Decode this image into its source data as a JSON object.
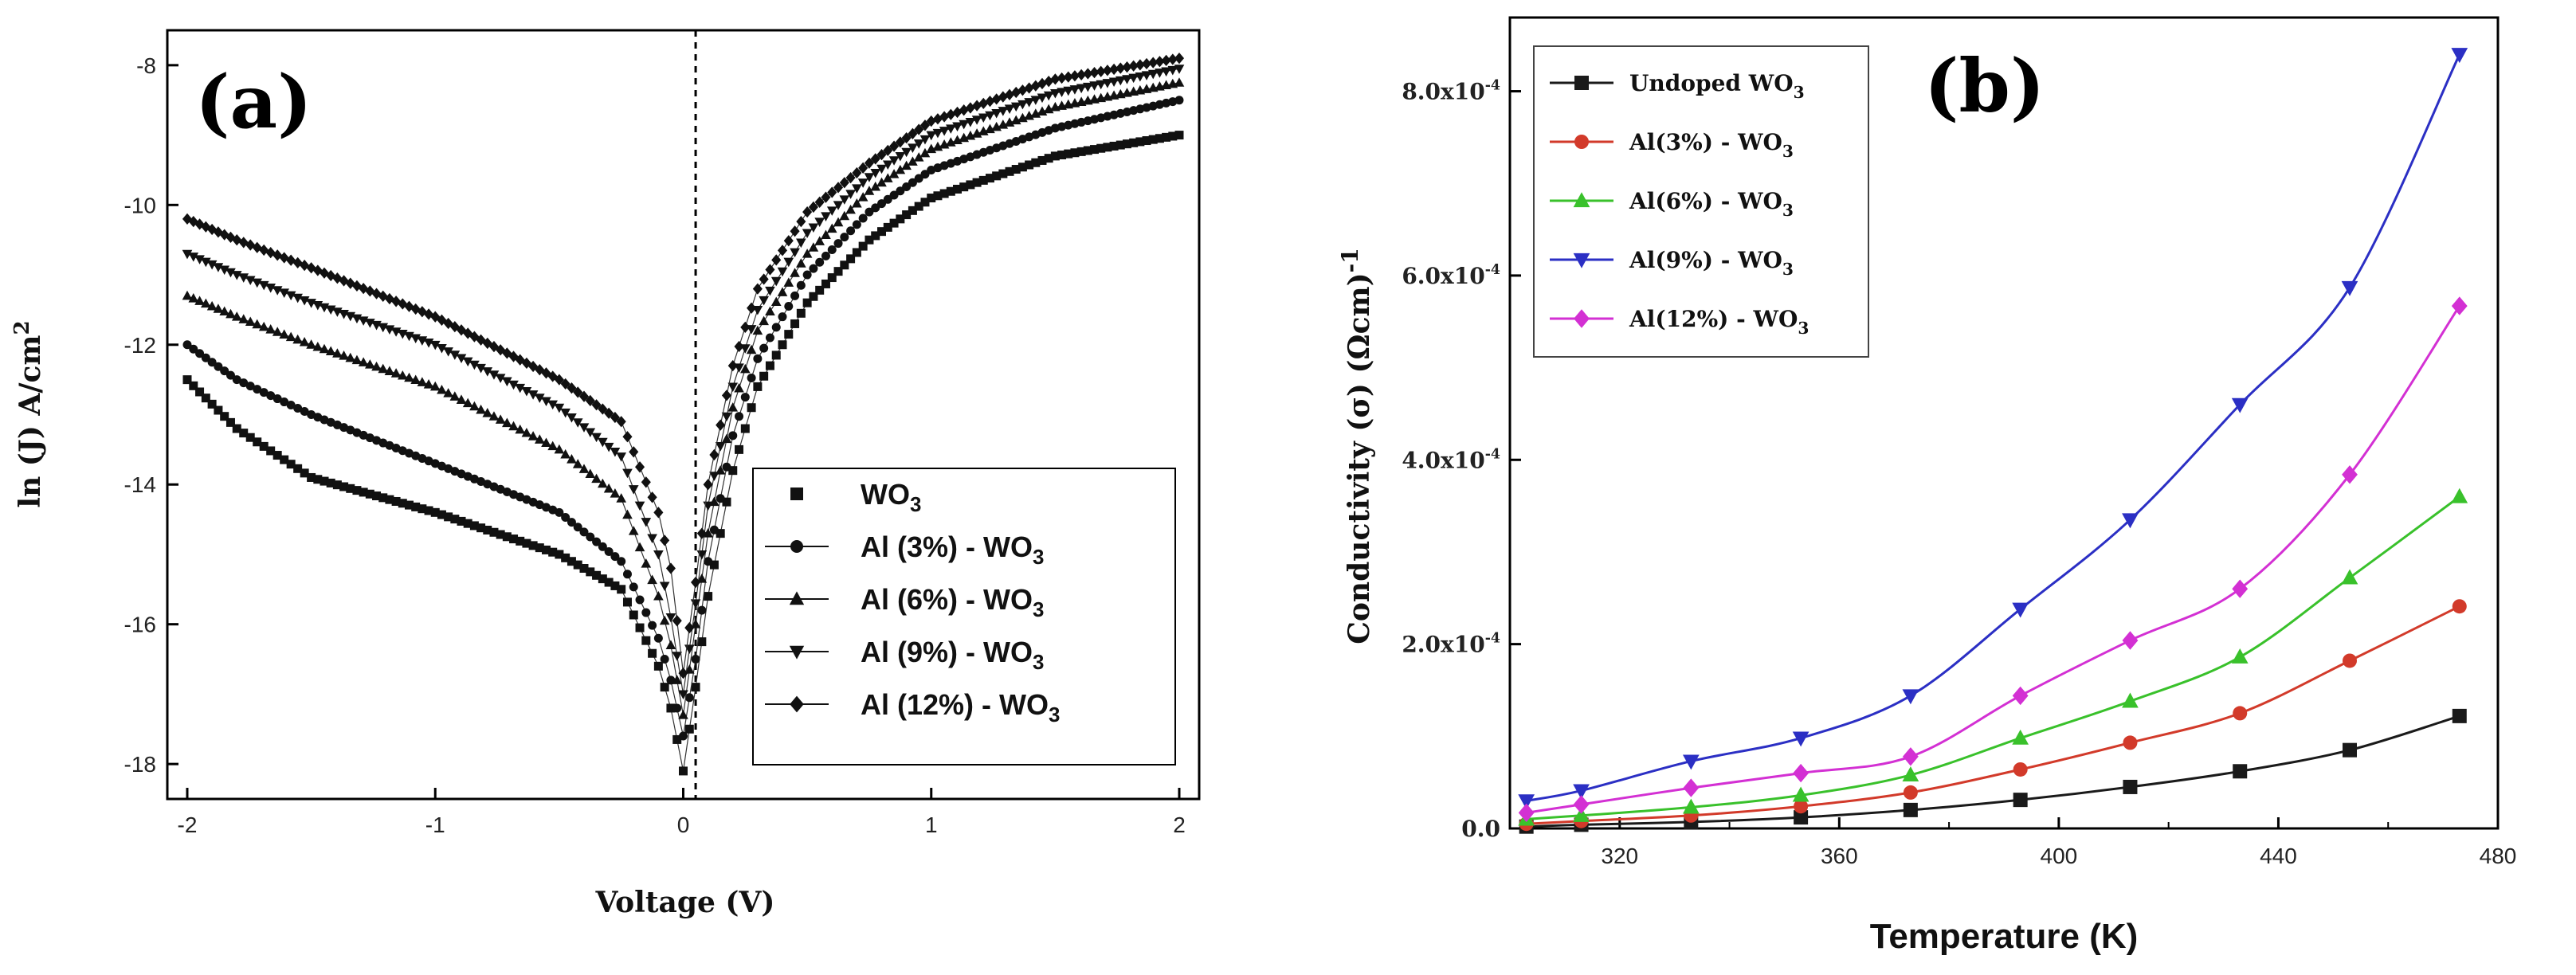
{
  "chart_data": [
    {
      "panel_label": "(a)",
      "type": "scatter",
      "xlabel": "Voltage (V)",
      "ylabel": "ln (J) A/cm",
      "ylabel_sup": "2",
      "xlim": [
        -2,
        2
      ],
      "ylim": [
        -18.5,
        -7.5
      ],
      "xticks": [
        "-2",
        "-1",
        "0",
        "1",
        "2"
      ],
      "yticks": [
        "-8",
        "-10",
        "-12",
        "-14",
        "-16",
        "-18"
      ],
      "vertical_reference_line": {
        "x": 0.05,
        "style": "dashed"
      },
      "legend": {
        "position": "lower-right"
      },
      "series": [
        {
          "name": "WO",
          "sub": "3",
          "marker": "square",
          "x": [
            -2,
            -1.8,
            -1.5,
            -1.0,
            -0.5,
            -0.25,
            -0.1,
            -0.05,
            0,
            0.05,
            0.1,
            0.2,
            0.3,
            0.5,
            0.75,
            1.0,
            1.5,
            2.0
          ],
          "y": [
            -12.5,
            -13.2,
            -13.9,
            -14.4,
            -15.0,
            -15.5,
            -16.6,
            -17.2,
            -18.1,
            -16.9,
            -15.6,
            -13.8,
            -12.6,
            -11.4,
            -10.5,
            -9.9,
            -9.3,
            -9.0
          ]
        },
        {
          "name": "Al (3%) - WO",
          "sub": "3",
          "marker": "circle",
          "x": [
            -2,
            -1.8,
            -1.5,
            -1.0,
            -0.5,
            -0.25,
            -0.1,
            -0.05,
            0,
            0.05,
            0.1,
            0.2,
            0.3,
            0.5,
            0.75,
            1.0,
            1.5,
            2.0
          ],
          "y": [
            -12.0,
            -12.5,
            -13.0,
            -13.7,
            -14.4,
            -15.1,
            -16.2,
            -16.8,
            -17.6,
            -16.5,
            -15.1,
            -13.3,
            -12.2,
            -11.0,
            -10.1,
            -9.5,
            -8.9,
            -8.5
          ]
        },
        {
          "name": "Al (6%) - WO",
          "sub": "3",
          "marker": "triangle-up",
          "x": [
            -2,
            -1.8,
            -1.5,
            -1.0,
            -0.5,
            -0.25,
            -0.1,
            -0.05,
            0,
            0.05,
            0.1,
            0.2,
            0.3,
            0.5,
            0.75,
            1.0,
            1.5,
            2.0
          ],
          "y": [
            -11.3,
            -11.6,
            -12.0,
            -12.6,
            -13.5,
            -14.2,
            -15.6,
            -16.3,
            -17.3,
            -16.0,
            -14.7,
            -12.9,
            -11.8,
            -10.7,
            -9.8,
            -9.2,
            -8.6,
            -8.25
          ]
        },
        {
          "name": "Al (9%) - WO",
          "sub": "3",
          "marker": "triangle-down",
          "x": [
            -2,
            -1.8,
            -1.5,
            -1.0,
            -0.5,
            -0.25,
            -0.1,
            -0.05,
            0,
            0.05,
            0.1,
            0.2,
            0.3,
            0.5,
            0.75,
            1.0,
            1.5,
            2.0
          ],
          "y": [
            -10.7,
            -11.0,
            -11.4,
            -12.0,
            -12.9,
            -13.6,
            -15.0,
            -15.9,
            -17.0,
            -15.7,
            -14.3,
            -12.6,
            -11.5,
            -10.4,
            -9.6,
            -9.0,
            -8.4,
            -8.05
          ]
        },
        {
          "name": "Al (12%) - WO",
          "sub": "3",
          "marker": "diamond",
          "x": [
            -2,
            -1.8,
            -1.5,
            -1.0,
            -0.5,
            -0.25,
            -0.1,
            -0.05,
            0,
            0.05,
            0.1,
            0.2,
            0.3,
            0.5,
            0.75,
            1.0,
            1.5,
            2.0
          ],
          "y": [
            -10.2,
            -10.5,
            -10.9,
            -11.6,
            -12.5,
            -13.1,
            -14.4,
            -15.2,
            -16.7,
            -15.4,
            -14.0,
            -12.3,
            -11.2,
            -10.1,
            -9.4,
            -8.8,
            -8.2,
            -7.9
          ]
        }
      ]
    },
    {
      "panel_label": "(b)",
      "type": "line",
      "xlabel": "Temperature (K)",
      "ylabel": "Conductivity (σ) (Ωcm)",
      "ylabel_sup": "-1",
      "xlim": [
        300,
        480
      ],
      "ylim": [
        0,
        0.00088
      ],
      "xticks": [
        "320",
        "360",
        "400",
        "440",
        "480"
      ],
      "yticks": [
        "0.0",
        "2.0x10",
        "4.0x10",
        "6.0x10",
        "8.0x10"
      ],
      "ytick_sup": "-4",
      "legend": {
        "position": "top-left"
      },
      "x": [
        303,
        313,
        333,
        353,
        373,
        393,
        413,
        433,
        453,
        473
      ],
      "series": [
        {
          "name": "Undoped WO",
          "sub": "3",
          "color": "#1a1a1a",
          "marker": "square",
          "values": [
            2e-06,
            4e-06,
            7e-06,
            1.2e-05,
            2e-05,
            3.1e-05,
            4.5e-05,
            6.2e-05,
            8.5e-05,
            0.000122
          ]
        },
        {
          "name": "Al(3%) - WO",
          "sub": "3",
          "color": "#d23a2a",
          "marker": "circle",
          "values": [
            5e-06,
            8e-06,
            1.4e-05,
            2.4e-05,
            3.9e-05,
            6.4e-05,
            9.3e-05,
            0.000125,
            0.000182,
            0.000241
          ]
        },
        {
          "name": "Al(6%) - WO",
          "sub": "3",
          "color": "#39c12b",
          "marker": "triangle-up",
          "values": [
            1e-05,
            1.4e-05,
            2.3e-05,
            3.6e-05,
            5.8e-05,
            9.8e-05,
            0.000138,
            0.000186,
            0.000272,
            0.00036
          ]
        },
        {
          "name": "Al(9%) - WO",
          "sub": "3",
          "color": "#2b2fc4",
          "marker": "triangle-down",
          "values": [
            3e-05,
            4.1e-05,
            7.3e-05,
            9.8e-05,
            0.000144,
            0.000238,
            0.000335,
            0.00046,
            0.000587,
            0.00084
          ]
        },
        {
          "name": "Al(12%) - WO",
          "sub": "3",
          "color": "#d330d3",
          "marker": "diamond",
          "values": [
            1.7e-05,
            2.6e-05,
            4.4e-05,
            6e-05,
            7.8e-05,
            0.000144,
            0.000204,
            0.00026,
            0.000384,
            0.000567
          ]
        }
      ]
    }
  ]
}
